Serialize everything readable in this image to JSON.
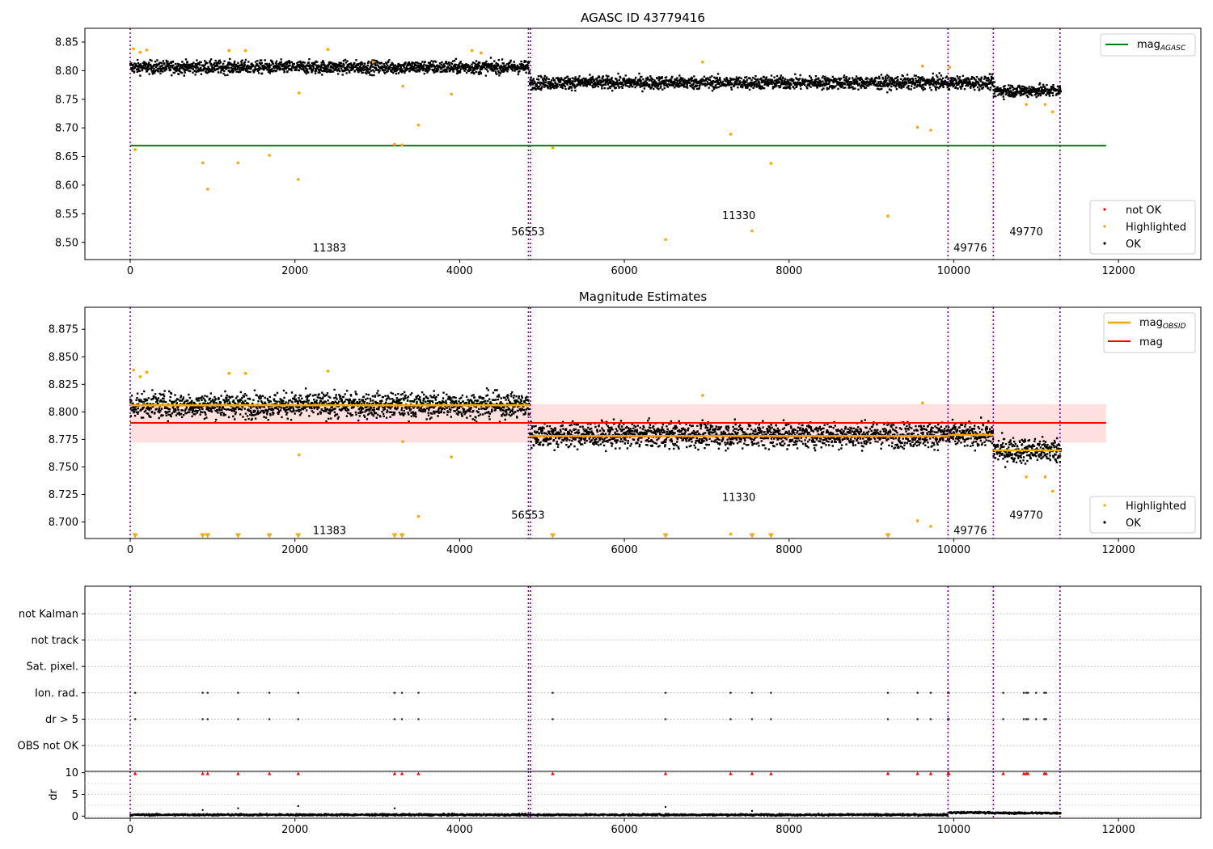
{
  "chart_data": [
    {
      "type": "scatter",
      "title": "AGASC ID 43779416",
      "xlim": [
        -550,
        13000
      ],
      "ylim": [
        8.47,
        8.874
      ],
      "x_ticks": [
        0,
        2000,
        4000,
        6000,
        8000,
        10000,
        12000
      ],
      "y_ticks": [
        8.5,
        8.55,
        8.6,
        8.65,
        8.7,
        8.75,
        8.8,
        8.85
      ],
      "y_tick_labels": [
        "8.50",
        "8.55",
        "8.60",
        "8.65",
        "8.70",
        "8.75",
        "8.80",
        "8.85"
      ],
      "legend_upper": {
        "position": "upper-right",
        "entries": [
          {
            "label": "mag",
            "subscript": "AGASC",
            "color": "#008000"
          }
        ]
      },
      "legend_lower": {
        "position": "lower-right",
        "entries": [
          {
            "label": "not OK",
            "color": "#ff0000"
          },
          {
            "label": "Highlighted",
            "color": "#ffa500"
          },
          {
            "label": "OK",
            "color": "#000000"
          }
        ]
      },
      "mag_agasc": {
        "value": 8.669,
        "x_range": [
          0,
          11850
        ],
        "color": "#008000"
      },
      "obsid_boundaries": [
        0,
        4835,
        4860,
        9930,
        10480,
        11290
      ],
      "obsid_labels": [
        {
          "text": "11383",
          "x": 2420,
          "y": 8.49
        },
        {
          "text": "56553",
          "x": 4830,
          "y": 8.518
        },
        {
          "text": "11330",
          "x": 7390,
          "y": 8.546
        },
        {
          "text": "49776",
          "x": 10200,
          "y": 8.49
        },
        {
          "text": "49770",
          "x": 10880,
          "y": 8.518
        }
      ],
      "ok_segments": [
        {
          "x_range": [
            0,
            4850
          ],
          "mean": 8.806,
          "spread": 0.011
        },
        {
          "x_range": [
            4850,
            9930
          ],
          "mean": 8.779,
          "spread": 0.011
        },
        {
          "x_range": [
            9930,
            10480
          ],
          "mean": 8.779,
          "spread": 0.011
        },
        {
          "x_range": [
            10480,
            11300
          ],
          "mean": 8.765,
          "spread": 0.011
        }
      ],
      "highlighted_points": [
        [
          60,
          8.662
        ],
        [
          880,
          8.639
        ],
        [
          940,
          8.593
        ],
        [
          1310,
          8.639
        ],
        [
          1690,
          8.652
        ],
        [
          2040,
          8.61
        ],
        [
          2050,
          8.761
        ],
        [
          3210,
          8.671
        ],
        [
          3300,
          8.67
        ],
        [
          3310,
          8.773
        ],
        [
          3500,
          8.705
        ],
        [
          3900,
          8.759
        ],
        [
          5130,
          8.665
        ],
        [
          6500,
          8.505
        ],
        [
          7290,
          8.689
        ],
        [
          7550,
          8.52
        ],
        [
          7780,
          8.638
        ],
        [
          9200,
          8.546
        ],
        [
          9560,
          8.701
        ],
        [
          9720,
          8.696
        ],
        [
          10880,
          8.741
        ],
        [
          11110,
          8.741
        ],
        [
          11200,
          8.728
        ],
        [
          40,
          8.838
        ],
        [
          120,
          8.832
        ],
        [
          200,
          8.836
        ],
        [
          1200,
          8.835
        ],
        [
          1400,
          8.835
        ],
        [
          2400,
          8.837
        ],
        [
          2950,
          8.815
        ],
        [
          4150,
          8.835
        ],
        [
          4260,
          8.831
        ],
        [
          6950,
          8.815
        ],
        [
          9620,
          8.808
        ],
        [
          9950,
          8.806
        ]
      ]
    },
    {
      "type": "scatter",
      "title": "Magnitude Estimates",
      "xlim": [
        -550,
        13000
      ],
      "ylim": [
        8.685,
        8.895
      ],
      "x_ticks": [
        0,
        2000,
        4000,
        6000,
        8000,
        10000,
        12000
      ],
      "y_ticks": [
        8.7,
        8.725,
        8.75,
        8.775,
        8.8,
        8.825,
        8.85,
        8.875
      ],
      "y_tick_labels": [
        "8.700",
        "8.725",
        "8.750",
        "8.775",
        "8.800",
        "8.825",
        "8.850",
        "8.875"
      ],
      "legend_upper": {
        "position": "upper-right",
        "entries": [
          {
            "label": "mag",
            "subscript": "OBSID",
            "color": "#ffa500"
          },
          {
            "label": "mag",
            "subscript": "",
            "color": "#ff0000"
          }
        ]
      },
      "legend_lower": {
        "position": "lower-right",
        "entries": [
          {
            "label": "Highlighted",
            "color": "#ffa500"
          },
          {
            "label": "OK",
            "color": "#000000"
          }
        ]
      },
      "mag": {
        "value": 8.79,
        "band": [
          8.772,
          8.807
        ],
        "x_range": [
          0,
          11850
        ],
        "color": "#ff0000"
      },
      "mag_obsid": [
        {
          "x_range": [
            0,
            4850
          ],
          "value": 8.806
        },
        {
          "x_range": [
            4850,
            9930
          ],
          "value": 8.778
        },
        {
          "x_range": [
            9930,
            10480
          ],
          "value": 8.779
        },
        {
          "x_range": [
            10480,
            11300
          ],
          "value": 8.765
        }
      ],
      "obsid_boundaries": [
        0,
        4835,
        4860,
        9930,
        10480,
        11290
      ],
      "obsid_labels": [
        {
          "text": "11383",
          "x": 2420,
          "y": 8.692
        },
        {
          "text": "56553",
          "x": 4830,
          "y": 8.706
        },
        {
          "text": "11330",
          "x": 7390,
          "y": 8.722
        },
        {
          "text": "49776",
          "x": 10200,
          "y": 8.692
        },
        {
          "text": "49770",
          "x": 10880,
          "y": 8.706
        }
      ],
      "ok_segments": [
        {
          "x_range": [
            0,
            4850
          ],
          "mean": 8.806,
          "spread": 0.011
        },
        {
          "x_range": [
            4850,
            9930
          ],
          "mean": 8.779,
          "spread": 0.011
        },
        {
          "x_range": [
            9930,
            10480
          ],
          "mean": 8.779,
          "spread": 0.011
        },
        {
          "x_range": [
            10480,
            11300
          ],
          "mean": 8.765,
          "spread": 0.011
        }
      ],
      "highlighted_points": [
        [
          40,
          8.838
        ],
        [
          120,
          8.832
        ],
        [
          200,
          8.836
        ],
        [
          1200,
          8.835
        ],
        [
          1400,
          8.835
        ],
        [
          2400,
          8.837
        ],
        [
          2050,
          8.761
        ],
        [
          3310,
          8.773
        ],
        [
          3500,
          8.705
        ],
        [
          3900,
          8.759
        ],
        [
          7290,
          8.689
        ],
        [
          9560,
          8.701
        ],
        [
          9720,
          8.696
        ],
        [
          10880,
          8.741
        ],
        [
          11110,
          8.741
        ],
        [
          11200,
          8.728
        ],
        [
          6950,
          8.815
        ],
        [
          9620,
          8.808
        ]
      ],
      "offscale_markers": [
        60,
        880,
        940,
        1310,
        1690,
        2040,
        3210,
        3300,
        5130,
        6500,
        7550,
        7780,
        9200
      ]
    },
    {
      "type": "scatter",
      "title": "",
      "xlim": [
        -550,
        13000
      ],
      "x_ticks": [
        0,
        2000,
        4000,
        6000,
        8000,
        10000,
        12000
      ],
      "flag_rows": [
        "not Kalman",
        "not track",
        "Sat. pixel.",
        "Ion. rad.",
        "dr > 5",
        "OBS not OK"
      ],
      "flagged_times": {
        "Ion. rad.": [
          60,
          880,
          940,
          1310,
          1690,
          2040,
          3210,
          3300,
          3500,
          5130,
          6500,
          7290,
          7550,
          7780,
          9200,
          9560,
          9720,
          9930,
          9940,
          10600,
          10850,
          10880,
          10900,
          11000,
          11100,
          11120
        ],
        "dr > 5": [
          60,
          880,
          940,
          1310,
          1690,
          2040,
          3210,
          3300,
          3500,
          5130,
          6500,
          7290,
          7550,
          7780,
          9200,
          9560,
          9720,
          9930,
          9940,
          10600,
          10850,
          10880,
          10900,
          11000,
          11100,
          11120
        ]
      },
      "obsid_boundaries": [
        0,
        4835,
        4860,
        9930,
        10480,
        11290
      ]
    },
    {
      "type": "scatter",
      "title": "",
      "ylabel": "dr",
      "xlim": [
        -550,
        13000
      ],
      "ylim": [
        -0.5,
        10.3
      ],
      "x_ticks": [
        0,
        2000,
        4000,
        6000,
        8000,
        10000,
        12000
      ],
      "y_ticks": [
        0,
        5,
        10
      ],
      "dr_clipped_at": 10,
      "dr_clipped_times": [
        60,
        880,
        940,
        1310,
        1690,
        2040,
        3210,
        3300,
        3500,
        5130,
        6500,
        7290,
        7550,
        7780,
        9200,
        9560,
        9720,
        9930,
        9940,
        10600,
        10850,
        10880,
        10900,
        11100,
        11120
      ],
      "dr_outliers": [
        [
          880,
          1.4
        ],
        [
          1310,
          1.8
        ],
        [
          2040,
          2.3
        ],
        [
          3210,
          1.8
        ],
        [
          6500,
          2.1
        ],
        [
          7550,
          1.2
        ]
      ],
      "dr_segments": [
        {
          "x_range": [
            0,
            9930
          ],
          "level": 0.3
        },
        {
          "x_range": [
            9930,
            10480
          ],
          "level": 0.8
        },
        {
          "x_range": [
            10480,
            11300
          ],
          "level": 0.7
        }
      ],
      "obsid_boundaries": [
        0,
        4835,
        4860,
        9930,
        10480,
        11290
      ]
    }
  ]
}
